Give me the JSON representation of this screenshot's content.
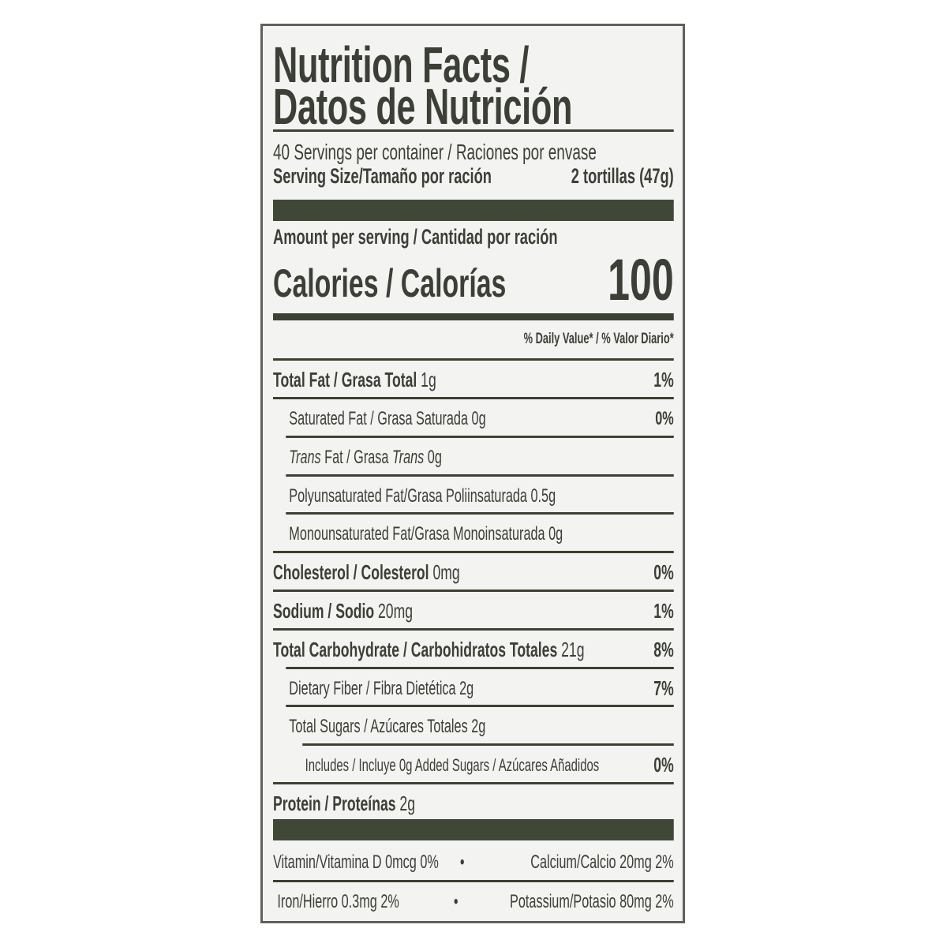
{
  "title": {
    "line1": "Nutrition Facts /",
    "line2": "Datos de Nutrición"
  },
  "servings": "40 Servings per container / Raciones por envase",
  "serving_size": {
    "label": "Serving Size/Tamaño por ración",
    "value": "2 tortillas (47g)"
  },
  "amount_per_serving": "Amount per serving / Cantidad por ración",
  "calories": {
    "label": "Calories / Calorías",
    "value": "100"
  },
  "daily_value_header": "% Daily Value* / % Valor Diario*",
  "nutrients": [
    {
      "name": "Total Fat / Grasa Total",
      "amount": "1g",
      "dv": "1%"
    },
    {
      "name": "Saturated Fat / Grasa Saturada",
      "amount": "0g",
      "dv": "0%"
    },
    {
      "name_parts": [
        "Trans",
        " Fat / Grasa ",
        "Trans",
        " 0g"
      ],
      "dv": ""
    },
    {
      "name": "Polyunsaturated Fat/Grasa Poliinsaturada",
      "amount": "0.5g",
      "dv": ""
    },
    {
      "name": "Monounsaturated Fat/Grasa Monoinsaturada",
      "amount": "0g",
      "dv": ""
    },
    {
      "name": "Cholesterol / Colesterol",
      "amount": "0mg",
      "dv": "0%"
    },
    {
      "name": "Sodium / Sodio",
      "amount": "20mg",
      "dv": "1%"
    },
    {
      "name": "Total Carbohydrate / Carbohidratos Totales",
      "amount": "21g",
      "dv": "8%"
    },
    {
      "name": "Dietary Fiber / Fibra Dietética",
      "amount": "2g",
      "dv": "7%"
    },
    {
      "name": "Total Sugars / Azúcares Totales",
      "amount": "2g",
      "dv": ""
    },
    {
      "name": "Includes / Incluye 0g Added Sugars / Azúcares Añadidos",
      "amount": "",
      "dv": "0%"
    },
    {
      "name": "Protein / Proteínas",
      "amount": "2g",
      "dv": ""
    }
  ],
  "micronutrients": [
    {
      "left": "Vitamin/Vitamina D 0mcg 0%",
      "right": "Calcium/Calcio 20mg 2%"
    },
    {
      "left": "Iron/Hierro 0.3mg 2%",
      "right": "Potassium/Potasio 80mg 2%"
    }
  ],
  "bullet": "•",
  "colors": {
    "ink": "#3b3f36",
    "bar": "#3f4836",
    "background": "#f3f3f1"
  }
}
